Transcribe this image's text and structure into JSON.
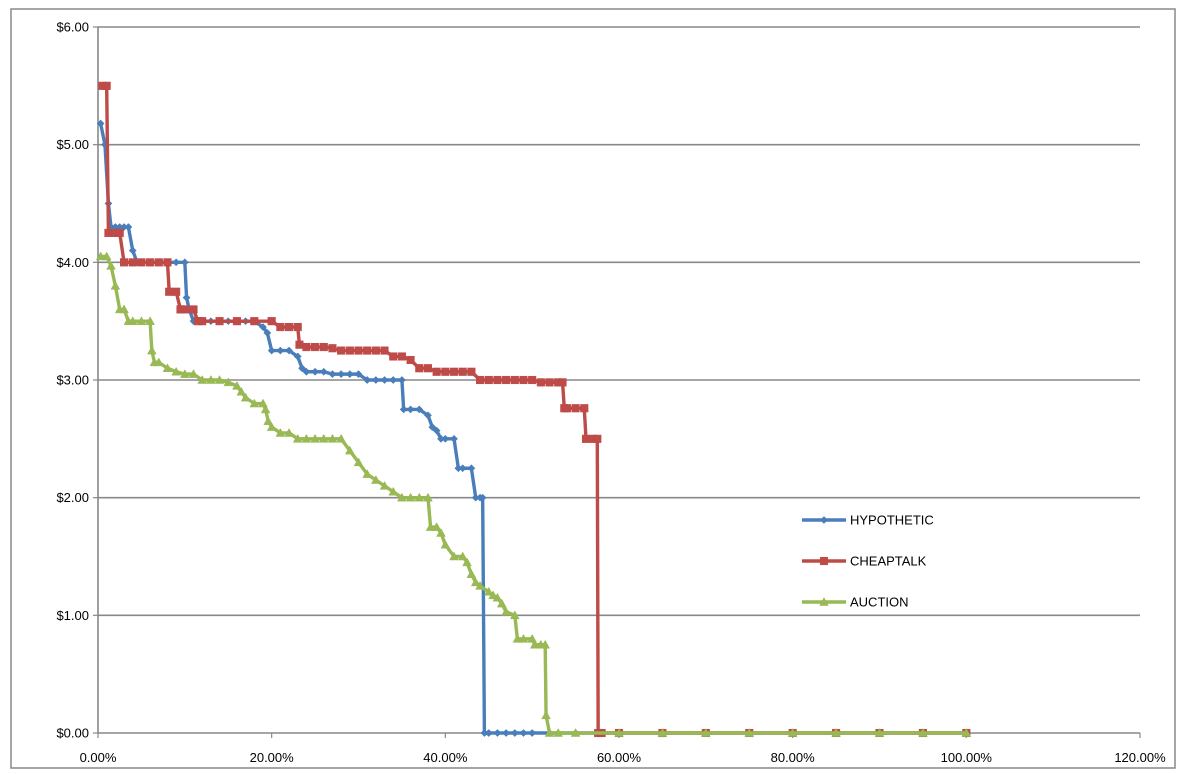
{
  "chart_data": {
    "type": "line",
    "title": "",
    "xlabel": "",
    "ylabel": "",
    "xlim": [
      0,
      120
    ],
    "ylim": [
      0,
      6
    ],
    "x_ticks": [
      "0.00%",
      "20.00%",
      "40.00%",
      "60.00%",
      "80.00%",
      "100.00%",
      "120.00%"
    ],
    "y_ticks": [
      "$0.00",
      "$1.00",
      "$2.00",
      "$3.00",
      "$4.00",
      "$5.00",
      "$6.00"
    ],
    "grid": "horizontal major gridlines",
    "legend_position": "right, inside plot",
    "series": [
      {
        "name": "HYPOTHETIC",
        "color": "#4a7ebb",
        "marker": "diamond",
        "points": [
          [
            0.3,
            5.18
          ],
          [
            0.8,
            5.0
          ],
          [
            1.2,
            4.5
          ],
          [
            1.5,
            4.3
          ],
          [
            2,
            4.3
          ],
          [
            2.5,
            4.3
          ],
          [
            3,
            4.3
          ],
          [
            3.5,
            4.3
          ],
          [
            4,
            4.1
          ],
          [
            4.5,
            4.0
          ],
          [
            5,
            4.0
          ],
          [
            6,
            4.0
          ],
          [
            7,
            4.0
          ],
          [
            8,
            4.0
          ],
          [
            9,
            4.0
          ],
          [
            10,
            4.0
          ],
          [
            10.2,
            3.7
          ],
          [
            10.5,
            3.6
          ],
          [
            11,
            3.5
          ],
          [
            12,
            3.5
          ],
          [
            13,
            3.5
          ],
          [
            14,
            3.5
          ],
          [
            15,
            3.5
          ],
          [
            16,
            3.5
          ],
          [
            17,
            3.5
          ],
          [
            18,
            3.5
          ],
          [
            19,
            3.45
          ],
          [
            19.5,
            3.4
          ],
          [
            20,
            3.25
          ],
          [
            21,
            3.25
          ],
          [
            22,
            3.25
          ],
          [
            23,
            3.2
          ],
          [
            23.5,
            3.1
          ],
          [
            24,
            3.07
          ],
          [
            25,
            3.07
          ],
          [
            26,
            3.07
          ],
          [
            27,
            3.05
          ],
          [
            28,
            3.05
          ],
          [
            29,
            3.05
          ],
          [
            30,
            3.05
          ],
          [
            31,
            3.0
          ],
          [
            32,
            3.0
          ],
          [
            33,
            3.0
          ],
          [
            34,
            3.0
          ],
          [
            35,
            3.0
          ],
          [
            35.2,
            2.75
          ],
          [
            36,
            2.75
          ],
          [
            37,
            2.75
          ],
          [
            38,
            2.7
          ],
          [
            38.5,
            2.6
          ],
          [
            39,
            2.57
          ],
          [
            39.5,
            2.5
          ],
          [
            40,
            2.5
          ],
          [
            41,
            2.5
          ],
          [
            41.5,
            2.25
          ],
          [
            42,
            2.25
          ],
          [
            43,
            2.25
          ],
          [
            43.5,
            2.0
          ],
          [
            44,
            2.0
          ],
          [
            44.3,
            2.0
          ],
          [
            44.5,
            0.0
          ],
          [
            45,
            0
          ],
          [
            46,
            0
          ],
          [
            47,
            0
          ],
          [
            48,
            0
          ],
          [
            49,
            0
          ],
          [
            50,
            0
          ],
          [
            52,
            0
          ],
          [
            55,
            0
          ],
          [
            60,
            0
          ],
          [
            65,
            0
          ],
          [
            70,
            0
          ],
          [
            75,
            0
          ],
          [
            80,
            0
          ],
          [
            85,
            0
          ],
          [
            90,
            0
          ],
          [
            95,
            0
          ],
          [
            100,
            0
          ]
        ]
      },
      {
        "name": "CHEAPTALK",
        "color": "#be4b48",
        "marker": "square",
        "points": [
          [
            0.5,
            5.5
          ],
          [
            1,
            5.5
          ],
          [
            1.2,
            4.25
          ],
          [
            2,
            4.25
          ],
          [
            2.5,
            4.25
          ],
          [
            3,
            4.0
          ],
          [
            4,
            4.0
          ],
          [
            5,
            4.0
          ],
          [
            6,
            4.0
          ],
          [
            7,
            4.0
          ],
          [
            8,
            4.0
          ],
          [
            8.2,
            3.75
          ],
          [
            9,
            3.75
          ],
          [
            9.5,
            3.6
          ],
          [
            10,
            3.6
          ],
          [
            11,
            3.6
          ],
          [
            11.5,
            3.5
          ],
          [
            12,
            3.5
          ],
          [
            14,
            3.5
          ],
          [
            16,
            3.5
          ],
          [
            18,
            3.5
          ],
          [
            20,
            3.5
          ],
          [
            21,
            3.45
          ],
          [
            22,
            3.45
          ],
          [
            23,
            3.45
          ],
          [
            23.2,
            3.3
          ],
          [
            24,
            3.28
          ],
          [
            25,
            3.28
          ],
          [
            26,
            3.28
          ],
          [
            27,
            3.27
          ],
          [
            28,
            3.25
          ],
          [
            29,
            3.25
          ],
          [
            30,
            3.25
          ],
          [
            31,
            3.25
          ],
          [
            32,
            3.25
          ],
          [
            33,
            3.25
          ],
          [
            34,
            3.2
          ],
          [
            35,
            3.2
          ],
          [
            36,
            3.17
          ],
          [
            37,
            3.1
          ],
          [
            38,
            3.1
          ],
          [
            39,
            3.07
          ],
          [
            40,
            3.07
          ],
          [
            41,
            3.07
          ],
          [
            42,
            3.07
          ],
          [
            43,
            3.07
          ],
          [
            44,
            3.0
          ],
          [
            45,
            3.0
          ],
          [
            46,
            3.0
          ],
          [
            47,
            3.0
          ],
          [
            48,
            3.0
          ],
          [
            49,
            3.0
          ],
          [
            50,
            3.0
          ],
          [
            51,
            2.98
          ],
          [
            52,
            2.98
          ],
          [
            53,
            2.98
          ],
          [
            53.5,
            2.98
          ],
          [
            53.7,
            2.76
          ],
          [
            54,
            2.76
          ],
          [
            55,
            2.76
          ],
          [
            56,
            2.76
          ],
          [
            56.2,
            2.5
          ],
          [
            57,
            2.5
          ],
          [
            57.5,
            2.5
          ],
          [
            57.6,
            0.0
          ],
          [
            58,
            0
          ],
          [
            60,
            0
          ],
          [
            65,
            0
          ],
          [
            70,
            0
          ],
          [
            75,
            0
          ],
          [
            80,
            0
          ],
          [
            85,
            0
          ],
          [
            90,
            0
          ],
          [
            95,
            0
          ],
          [
            100,
            0
          ]
        ]
      },
      {
        "name": "AUCTION",
        "color": "#98b954",
        "marker": "triangle",
        "points": [
          [
            0.3,
            4.05
          ],
          [
            1,
            4.05
          ],
          [
            1.5,
            3.97
          ],
          [
            2,
            3.8
          ],
          [
            2.5,
            3.6
          ],
          [
            3,
            3.6
          ],
          [
            3.5,
            3.5
          ],
          [
            4,
            3.5
          ],
          [
            5,
            3.5
          ],
          [
            6,
            3.5
          ],
          [
            6.2,
            3.25
          ],
          [
            6.5,
            3.15
          ],
          [
            7,
            3.15
          ],
          [
            8,
            3.1
          ],
          [
            9,
            3.07
          ],
          [
            10,
            3.05
          ],
          [
            11,
            3.05
          ],
          [
            12,
            3.0
          ],
          [
            13,
            3.0
          ],
          [
            14,
            3.0
          ],
          [
            15,
            2.98
          ],
          [
            16,
            2.95
          ],
          [
            16.5,
            2.9
          ],
          [
            17,
            2.85
          ],
          [
            18,
            2.8
          ],
          [
            19,
            2.8
          ],
          [
            19.3,
            2.75
          ],
          [
            19.6,
            2.65
          ],
          [
            20,
            2.6
          ],
          [
            21,
            2.55
          ],
          [
            22,
            2.55
          ],
          [
            23,
            2.5
          ],
          [
            24,
            2.5
          ],
          [
            25,
            2.5
          ],
          [
            26,
            2.5
          ],
          [
            27,
            2.5
          ],
          [
            28,
            2.5
          ],
          [
            29,
            2.4
          ],
          [
            30,
            2.3
          ],
          [
            31,
            2.2
          ],
          [
            32,
            2.15
          ],
          [
            33,
            2.1
          ],
          [
            34,
            2.05
          ],
          [
            35,
            2.0
          ],
          [
            36,
            2.0
          ],
          [
            37,
            2.0
          ],
          [
            38,
            2.0
          ],
          [
            38.3,
            1.75
          ],
          [
            39,
            1.75
          ],
          [
            39.5,
            1.7
          ],
          [
            40,
            1.6
          ],
          [
            41,
            1.5
          ],
          [
            42,
            1.5
          ],
          [
            42.5,
            1.45
          ],
          [
            43,
            1.35
          ],
          [
            43.5,
            1.28
          ],
          [
            44,
            1.25
          ],
          [
            45,
            1.2
          ],
          [
            45.5,
            1.17
          ],
          [
            46,
            1.15
          ],
          [
            46.5,
            1.1
          ],
          [
            47,
            1.03
          ],
          [
            48,
            1.0
          ],
          [
            48.3,
            0.8
          ],
          [
            49,
            0.8
          ],
          [
            50,
            0.8
          ],
          [
            50.3,
            0.75
          ],
          [
            51,
            0.75
          ],
          [
            51.5,
            0.75
          ],
          [
            51.6,
            0.15
          ],
          [
            52,
            0.0
          ],
          [
            53,
            0
          ],
          [
            55,
            0
          ],
          [
            60,
            0
          ],
          [
            65,
            0
          ],
          [
            70,
            0
          ],
          [
            75,
            0
          ],
          [
            80,
            0
          ],
          [
            85,
            0
          ],
          [
            90,
            0
          ],
          [
            95,
            0
          ],
          [
            100,
            0
          ]
        ]
      }
    ]
  }
}
